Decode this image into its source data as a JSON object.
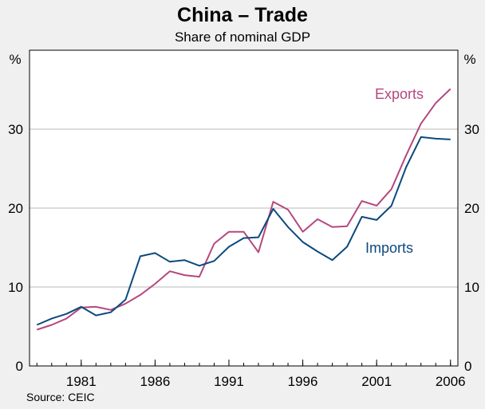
{
  "chart_data": {
    "type": "line",
    "title": "China – Trade",
    "subtitle": "Share of nominal GDP",
    "ylabel_left": "%",
    "ylabel_right": "%",
    "xlabel": "",
    "source": "Source: CEIC",
    "xlim": [
      1977.5,
      2006.5
    ],
    "ylim": [
      0,
      40
    ],
    "yticks": [
      0,
      10,
      20,
      30
    ],
    "ytick_labels": [
      "0",
      "10",
      "20",
      "30"
    ],
    "xticks": [
      1981,
      1986,
      1991,
      1996,
      2001,
      2006
    ],
    "xtick_labels": [
      "1981",
      "1986",
      "1991",
      "1996",
      "2001",
      "2006"
    ],
    "grid": true,
    "x": [
      1978,
      1979,
      1980,
      1981,
      1982,
      1983,
      1984,
      1985,
      1986,
      1987,
      1988,
      1989,
      1990,
      1991,
      1992,
      1993,
      1994,
      1995,
      1996,
      1997,
      1998,
      1999,
      2000,
      2001,
      2002,
      2003,
      2004,
      2005,
      2006
    ],
    "series": [
      {
        "name": "Exports",
        "color": "#b5477e",
        "values": [
          4.6,
          5.2,
          6.0,
          7.4,
          7.5,
          7.1,
          7.9,
          9.0,
          10.4,
          12.0,
          11.5,
          11.3,
          15.5,
          17.0,
          17.0,
          14.4,
          20.8,
          19.8,
          17.0,
          18.6,
          17.6,
          17.7,
          20.9,
          20.3,
          22.4,
          26.7,
          30.7,
          33.3,
          35.1
        ]
      },
      {
        "name": "Imports",
        "color": "#0d4a7e",
        "values": [
          5.2,
          6.0,
          6.6,
          7.5,
          6.4,
          6.8,
          8.4,
          13.9,
          14.3,
          13.2,
          13.4,
          12.7,
          13.3,
          15.1,
          16.2,
          16.3,
          19.9,
          17.6,
          15.7,
          14.5,
          13.4,
          15.1,
          18.9,
          18.5,
          20.3,
          25.2,
          29.0,
          28.8,
          28.7
        ]
      }
    ]
  },
  "colors": {
    "background": "#f0f0f0",
    "plot_background": "#ffffff",
    "gridline": "#b8b8b8",
    "axis": "#000000"
  }
}
